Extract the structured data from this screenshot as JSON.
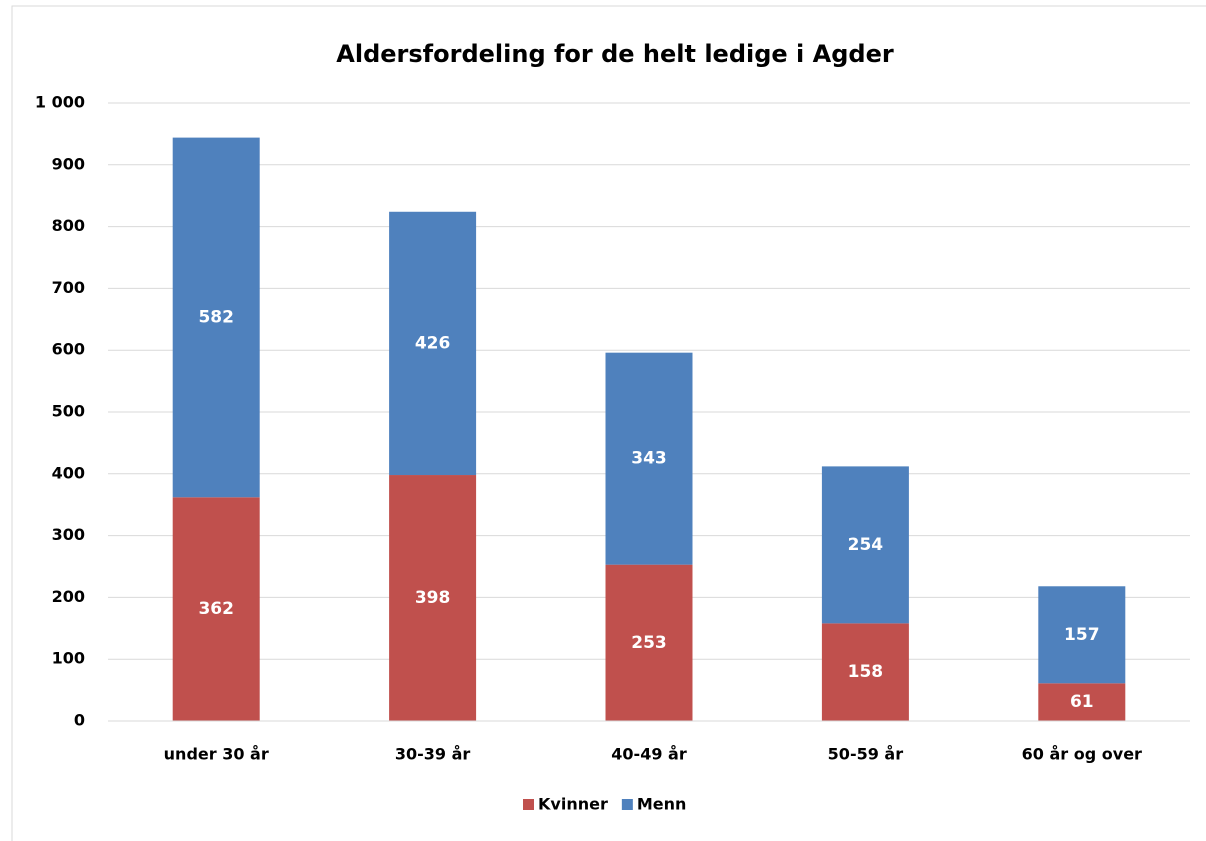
{
  "chart_data": {
    "type": "stacked_bar",
    "title": "Aldersfordeling for de helt ledige i Agder",
    "categories": [
      "under 30 år",
      "30-39 år",
      "40-49 år",
      "50-59 år",
      "60 år og over"
    ],
    "series": [
      {
        "name": "Kvinner",
        "color": "#c0504d",
        "values": [
          362,
          398,
          253,
          158,
          61
        ]
      },
      {
        "name": "Menn",
        "color": "#4f81bd",
        "values": [
          582,
          426,
          343,
          254,
          157
        ]
      }
    ],
    "ylim": [
      0,
      1000
    ],
    "yticks": [
      0,
      100,
      200,
      300,
      400,
      500,
      600,
      700,
      800,
      900,
      {
        "value": 1000,
        "label": "1 000"
      }
    ],
    "grid": true,
    "legend": "bottom"
  }
}
